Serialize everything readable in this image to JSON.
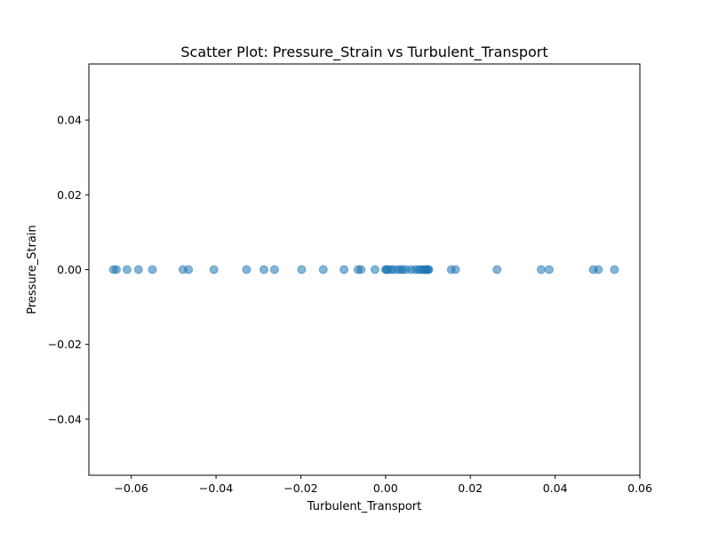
{
  "chart_data": {
    "type": "scatter",
    "title": "Scatter Plot: Pressure_Strain vs Turbulent_Transport",
    "xlabel": "Turbulent_Transport",
    "ylabel": "Pressure_Strain",
    "xlim": [
      -0.07,
      0.06
    ],
    "ylim": [
      -0.055,
      0.055
    ],
    "x_ticks": [
      -0.06,
      -0.04,
      -0.02,
      0.0,
      0.02,
      0.04,
      0.06
    ],
    "x_tick_labels": [
      "−0.06",
      "−0.04",
      "−0.02",
      "0.00",
      "0.02",
      "0.04",
      "0.06"
    ],
    "y_ticks": [
      -0.04,
      -0.02,
      0.0,
      0.02,
      0.04
    ],
    "y_tick_labels": [
      "−0.04",
      "−0.02",
      "0.00",
      "0.02",
      "0.04"
    ],
    "grid": false,
    "legend": false,
    "marker_color": "#1f77b4",
    "marker_alpha": 0.55,
    "points": {
      "x": [
        -0.0642,
        -0.0635,
        -0.061,
        -0.0583,
        -0.055,
        -0.0478,
        -0.0465,
        -0.0405,
        -0.0328,
        -0.0287,
        -0.0262,
        -0.0198,
        -0.0147,
        -0.0098,
        -0.0065,
        -0.0058,
        -0.0025,
        0.0,
        0.0002,
        0.0005,
        0.0012,
        0.0018,
        0.0028,
        0.0035,
        0.004,
        0.0048,
        0.006,
        0.007,
        0.0078,
        0.0082,
        0.0088,
        0.0092,
        0.0095,
        0.0098,
        0.01,
        0.0102,
        0.0155,
        0.0165,
        0.0263,
        0.0367,
        0.0386,
        0.049,
        0.0502,
        0.054
      ],
      "y": [
        0,
        0,
        0,
        0,
        0,
        0,
        0,
        0,
        0,
        0,
        0,
        0,
        0,
        0,
        0,
        0,
        0,
        0,
        0,
        0,
        0,
        0,
        0,
        0,
        0,
        0,
        0,
        0,
        0,
        0,
        0,
        0,
        0,
        0,
        0,
        0,
        0,
        0,
        0,
        0,
        0,
        0,
        0,
        0
      ]
    }
  }
}
